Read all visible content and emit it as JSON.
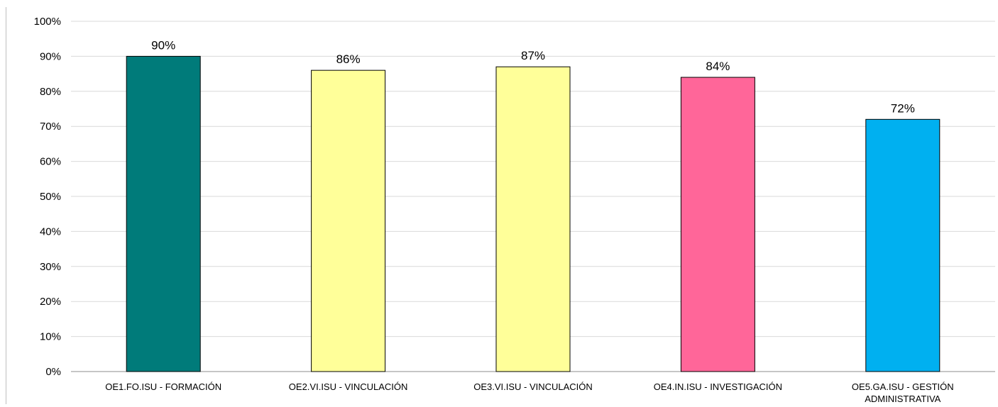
{
  "chart_data": {
    "type": "bar",
    "categories": [
      [
        "OE1.FO.ISU - FORMACIÓN"
      ],
      [
        "OE2.VI.ISU - VINCULACIÓN"
      ],
      [
        "OE3.VI.ISU - VINCULACIÓN"
      ],
      [
        "OE4.IN.ISU - INVESTIGACIÓN"
      ],
      [
        "OE5.GA.ISU - GESTIÓN",
        "ADMINISTRATIVA"
      ]
    ],
    "values": [
      90,
      86,
      87,
      84,
      72
    ],
    "data_labels": [
      "90%",
      "86%",
      "87%",
      "84%",
      "72%"
    ],
    "bar_colors": [
      "#007b7a",
      "#ffff99",
      "#ffff99",
      "#ff6699",
      "#00b0f0"
    ],
    "ylim": [
      0,
      100
    ],
    "yticks": [
      0,
      10,
      20,
      30,
      40,
      50,
      60,
      70,
      80,
      90,
      100
    ],
    "ytick_labels": [
      "0%",
      "10%",
      "20%",
      "30%",
      "40%",
      "50%",
      "60%",
      "70%",
      "80%",
      "90%",
      "100%"
    ],
    "grid": true,
    "title": "",
    "xlabel": "",
    "ylabel": ""
  }
}
